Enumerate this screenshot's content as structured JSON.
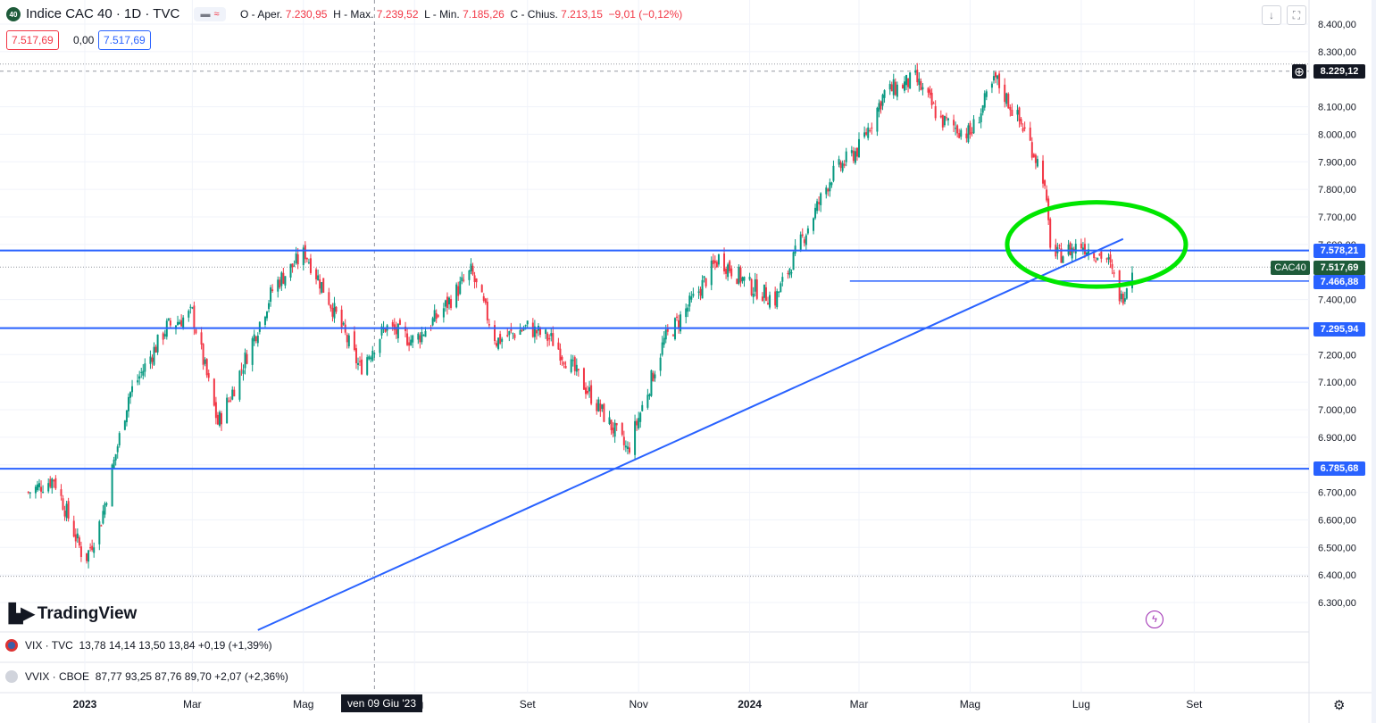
{
  "header": {
    "symbol_badge": "40",
    "title": "Indice CAC 40 · 1D · TVC",
    "ohlc": {
      "o_label": "O - Aper.",
      "o_value": "7.230,95",
      "h_label": "H - Max.",
      "h_value": "7.239,52",
      "l_label": "L - Min.",
      "l_value": "7.185,26",
      "c_label": "C - Chius.",
      "c_value": "7.213,15",
      "change": "−9,01 (−0,12%)"
    },
    "price_box_1": "7.517,69",
    "price_box_2": "0,00",
    "price_box_3": "7.517,69"
  },
  "price_axis": {
    "ticks": [
      "8.400,00",
      "8.300,00",
      "8.100,00",
      "8.000,00",
      "7.900,00",
      "7.800,00",
      "7.700,00",
      "7.600,00",
      "7.400,00",
      "7.300,00",
      "7.200,00",
      "7.100,00",
      "7.000,00",
      "6.900,00",
      "6.800,00",
      "6.700,00",
      "6.600,00",
      "6.500,00",
      "6.400,00",
      "6.300,00"
    ],
    "crosshair_label": "8.229,12",
    "level_labels": [
      "7.578,21",
      "7.466,88",
      "7.295,94",
      "6.785,68"
    ],
    "current_label": "7.517,69",
    "symbol_tag": "CAC40"
  },
  "time_axis": {
    "labels": [
      "2023",
      "Mar",
      "Mag",
      "Lug",
      "Set",
      "Nov",
      "2024",
      "Mar",
      "Mag",
      "Lug",
      "Set"
    ],
    "crosshair_date": "ven 09 Giu '23"
  },
  "indicators": [
    {
      "symbol": "VIX · TVC",
      "values": "13,78  14,14  13,50  13,84  +0,19  (+1,39%)"
    },
    {
      "symbol": "VVIX · CBOE",
      "values": "87,77  93,25  87,76  89,70  +2,07  (+2,36%)"
    }
  ],
  "branding": {
    "logo_text": "TradingView"
  },
  "colors": {
    "up": "#089981",
    "down": "#f23645",
    "line": "#2962ff",
    "highlight": "#00e600",
    "accent": "#1e5b3a"
  },
  "chart_data": {
    "type": "candlestick",
    "ylim": [
      6250,
      8450
    ],
    "x_range": [
      "2022-12-01",
      "2024-09-30"
    ],
    "horizontal_levels": [
      7578.21,
      7466.88,
      7295.94,
      6785.68
    ],
    "crosshair_price": 8229.12,
    "current_price": 7517.69,
    "trendline": [
      {
        "date": "2023-04-06",
        "price": 6200
      },
      {
        "date": "2023-10-26",
        "price": 6785
      },
      {
        "date": "2024-07-24",
        "price": 7620
      }
    ],
    "highlight_ellipse": {
      "date_from": "2024-06-08",
      "date_to": "2024-07-29",
      "price_from": 7450,
      "price_to": 7750
    },
    "close_series": [
      {
        "date": "2022-12-01",
        "close": 6700
      },
      {
        "date": "2022-12-15",
        "close": 6750
      },
      {
        "date": "2023-01-01",
        "close": 6450
      },
      {
        "date": "2023-01-10",
        "close": 6600
      },
      {
        "date": "2023-01-25",
        "close": 7050
      },
      {
        "date": "2023-02-15",
        "close": 7300
      },
      {
        "date": "2023-03-01",
        "close": 7350
      },
      {
        "date": "2023-03-15",
        "close": 6950
      },
      {
        "date": "2023-03-22",
        "close": 7050
      },
      {
        "date": "2023-04-15",
        "close": 7450
      },
      {
        "date": "2023-05-02",
        "close": 7570
      },
      {
        "date": "2023-05-15",
        "close": 7400
      },
      {
        "date": "2023-06-01",
        "close": 7150
      },
      {
        "date": "2023-06-15",
        "close": 7300
      },
      {
        "date": "2023-07-01",
        "close": 7250
      },
      {
        "date": "2023-07-15",
        "close": 7350
      },
      {
        "date": "2023-08-01",
        "close": 7500
      },
      {
        "date": "2023-08-15",
        "close": 7250
      },
      {
        "date": "2023-09-01",
        "close": 7300
      },
      {
        "date": "2023-09-15",
        "close": 7250
      },
      {
        "date": "2023-10-01",
        "close": 7100
      },
      {
        "date": "2023-10-26",
        "close": 6850
      },
      {
        "date": "2023-11-15",
        "close": 7250
      },
      {
        "date": "2023-12-01",
        "close": 7400
      },
      {
        "date": "2023-12-15",
        "close": 7550
      },
      {
        "date": "2024-01-01",
        "close": 7450
      },
      {
        "date": "2024-01-15",
        "close": 7400
      },
      {
        "date": "2024-02-01",
        "close": 7650
      },
      {
        "date": "2024-02-15",
        "close": 7850
      },
      {
        "date": "2024-03-01",
        "close": 7950
      },
      {
        "date": "2024-03-15",
        "close": 8150
      },
      {
        "date": "2024-04-01",
        "close": 8200
      },
      {
        "date": "2024-04-15",
        "close": 8050
      },
      {
        "date": "2024-05-01",
        "close": 8000
      },
      {
        "date": "2024-05-15",
        "close": 8200
      },
      {
        "date": "2024-06-01",
        "close": 8000
      },
      {
        "date": "2024-06-10",
        "close": 7850
      },
      {
        "date": "2024-06-15",
        "close": 7550
      },
      {
        "date": "2024-07-01",
        "close": 7600
      },
      {
        "date": "2024-07-15",
        "close": 7550
      },
      {
        "date": "2024-07-23",
        "close": 7400
      },
      {
        "date": "2024-07-29",
        "close": 7517.69
      }
    ]
  }
}
